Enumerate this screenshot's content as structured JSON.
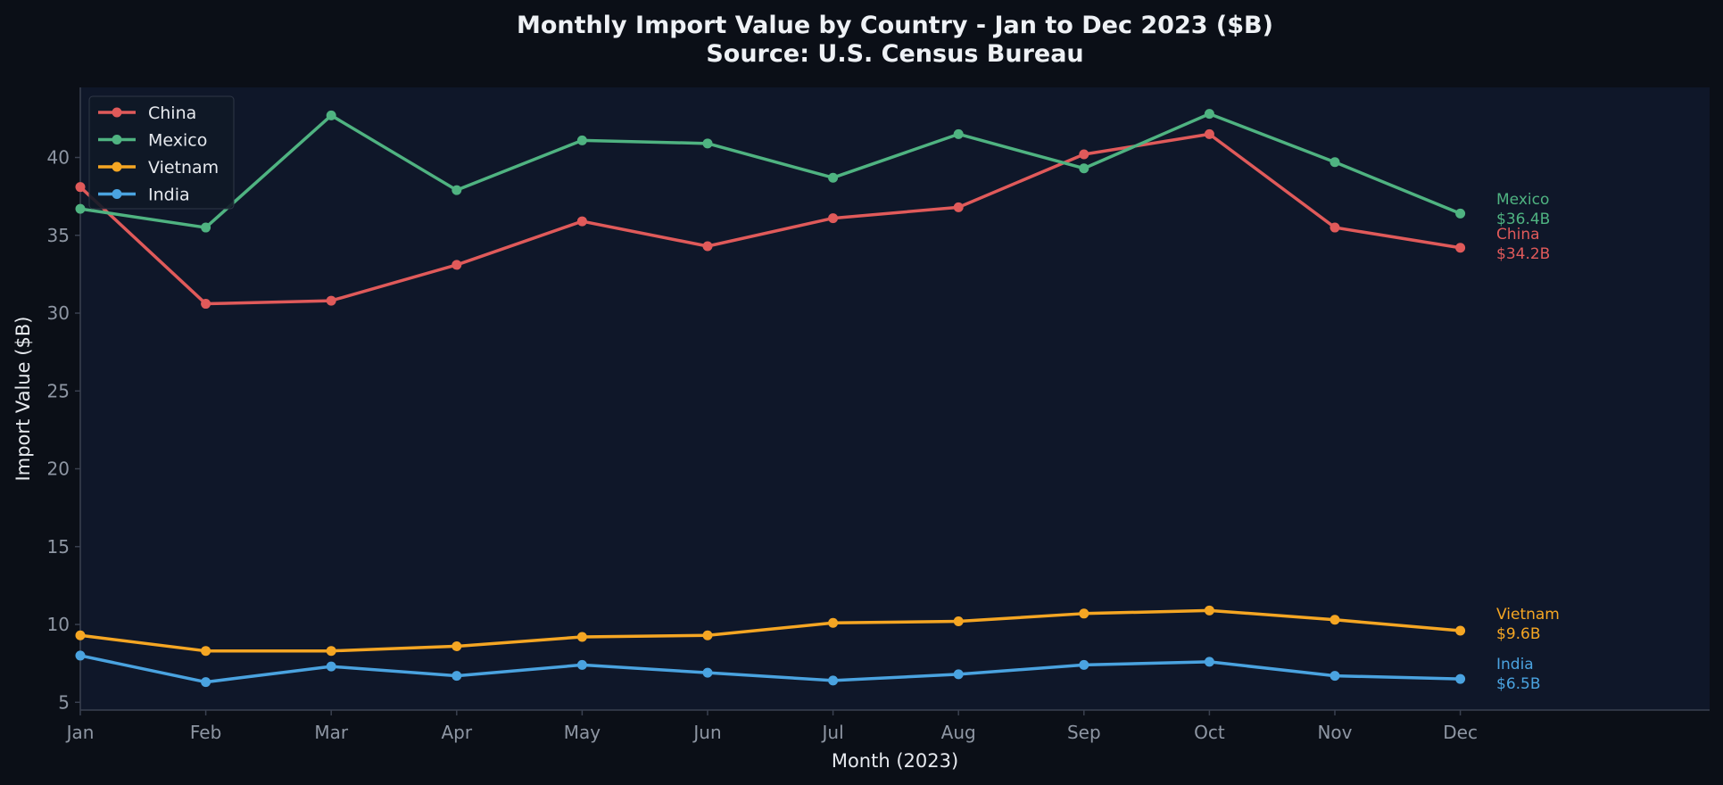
{
  "chart_data": {
    "type": "line",
    "title": "Monthly Import Value by Country - Jan to Dec 2023 ($B)",
    "subtitle": "Source: U.S. Census Bureau",
    "xlabel": "Month (2023)",
    "ylabel": "Import Value ($B)",
    "categories": [
      "Jan",
      "Feb",
      "Mar",
      "Apr",
      "May",
      "Jun",
      "Jul",
      "Aug",
      "Sep",
      "Oct",
      "Nov",
      "Dec"
    ],
    "yticks": [
      5,
      10,
      15,
      20,
      25,
      30,
      35,
      40
    ],
    "ylim": [
      4.5,
      44.5
    ],
    "grid": false,
    "legend_position": "top-left",
    "series": [
      {
        "name": "China",
        "color": "#e05a5a",
        "values": [
          38.1,
          30.6,
          30.8,
          33.1,
          35.9,
          34.3,
          36.1,
          36.8,
          40.2,
          41.5,
          35.5,
          34.2
        ],
        "end_label": "China",
        "end_value": "$34.2B"
      },
      {
        "name": "Mexico",
        "color": "#4fb381",
        "values": [
          36.7,
          35.5,
          42.7,
          37.9,
          41.1,
          40.9,
          38.7,
          41.5,
          39.3,
          42.8,
          39.7,
          36.4
        ],
        "end_label": "Mexico",
        "end_value": "$36.4B"
      },
      {
        "name": "Vietnam",
        "color": "#f5a623",
        "values": [
          9.3,
          8.3,
          8.3,
          8.6,
          9.2,
          9.3,
          10.1,
          10.2,
          10.7,
          10.9,
          10.3,
          9.6
        ],
        "end_label": "Vietnam",
        "end_value": "$9.6B"
      },
      {
        "name": "India",
        "color": "#4aa3e0",
        "values": [
          8.0,
          6.3,
          7.3,
          6.7,
          7.4,
          6.9,
          6.4,
          6.8,
          7.4,
          7.6,
          6.7,
          6.5
        ],
        "end_label": "India",
        "end_value": "$6.5B"
      }
    ]
  },
  "colors": {
    "background": "#0b0f17",
    "plot_background": "#0f1729",
    "axis": "#3a4150",
    "tick_text": "#8e96a3",
    "label_text": "#e6e9ee",
    "title_text": "#eef1f5"
  }
}
